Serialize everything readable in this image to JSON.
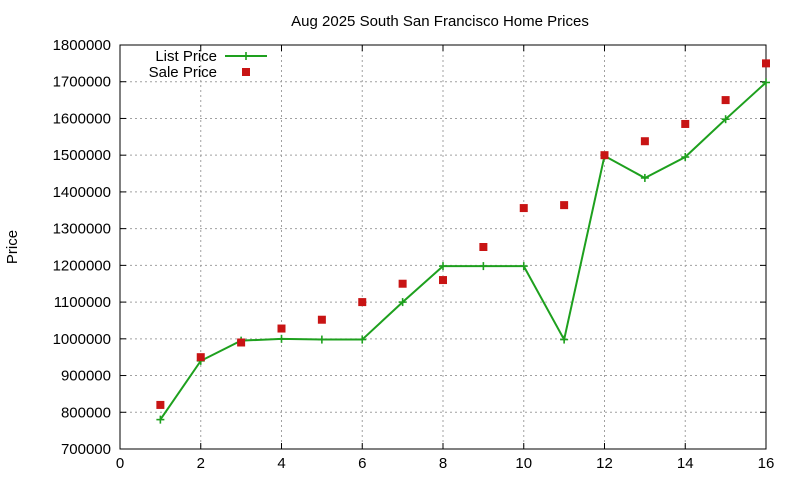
{
  "chart_data": {
    "type": "line",
    "title": "Aug 2025 South San Francisco Home Prices",
    "xlabel": "",
    "ylabel": "Price",
    "xlim": [
      0,
      16
    ],
    "ylim": [
      700000,
      1800000
    ],
    "xticks": [
      0,
      2,
      4,
      6,
      8,
      10,
      12,
      14,
      16
    ],
    "yticks": [
      700000,
      800000,
      900000,
      1000000,
      1100000,
      1200000,
      1300000,
      1400000,
      1500000,
      1600000,
      1700000,
      1800000
    ],
    "grid": true,
    "legend_position": "top-left",
    "series": [
      {
        "name": "List Price",
        "style": "line+plus",
        "color": "#1ea01e",
        "x": [
          1,
          2,
          3,
          4,
          5,
          6,
          7,
          8,
          9,
          10,
          11,
          12,
          13,
          14,
          15,
          16
        ],
        "y": [
          780000,
          940000,
          995000,
          1000000,
          998000,
          998000,
          1100000,
          1198000,
          1198000,
          1198000,
          998000,
          1498000,
          1438000,
          1495000,
          1598000,
          1698000
        ]
      },
      {
        "name": "Sale Price",
        "style": "square",
        "color": "#c81414",
        "x": [
          1,
          2,
          3,
          4,
          5,
          6,
          7,
          8,
          9,
          10,
          11,
          12,
          13,
          14,
          15,
          16
        ],
        "y": [
          820000,
          950000,
          990000,
          1028000,
          1052000,
          1100000,
          1150000,
          1160000,
          1250000,
          1356000,
          1364000,
          1500000,
          1538000,
          1585000,
          1650000,
          1750000
        ]
      }
    ]
  }
}
